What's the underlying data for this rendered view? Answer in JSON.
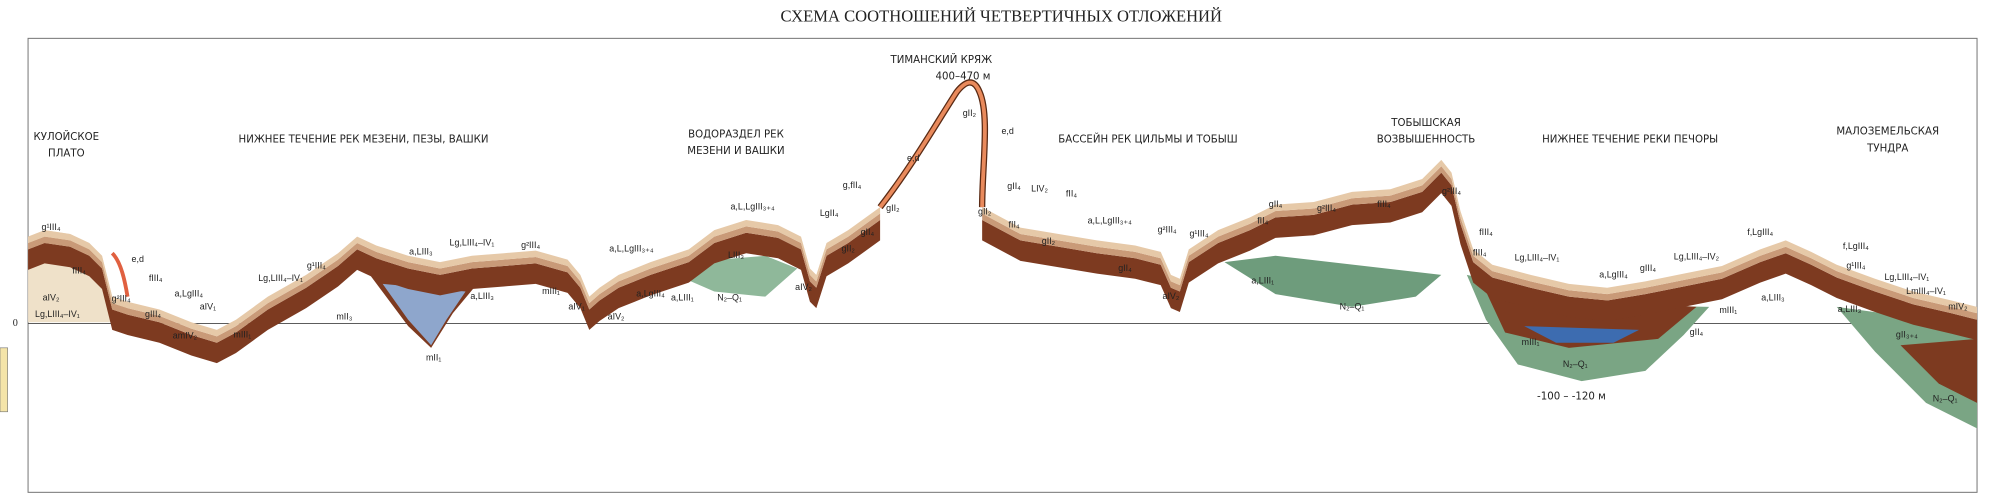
{
  "title": "СХЕМА СООТНОШЕНИЙ ЧЕТВЕРТИЧНЫХ ОТЛОЖЕНИЙ",
  "regions": [
    {
      "lines": [
        "КУЛОЙСКОЕ",
        "ПЛАТО"
      ]
    },
    {
      "lines": [
        "НИЖНЕЕ ТЕЧЕНИЕ РЕК  МЕЗЕНИ, ПЕЗЫ, ВАШКИ"
      ]
    },
    {
      "lines": [
        "ВОДОРАЗДЕЛ РЕК",
        "МЕЗЕНИ И ВАШКИ"
      ]
    },
    {
      "lines": [
        "ТИМАНСКИЙ КРЯЖ",
        "400–470 м"
      ]
    },
    {
      "lines": [
        "БАССЕЙН РЕК ЦИЛЬМЫ И ТОБЫШ"
      ]
    },
    {
      "lines": [
        "ТОБЫШСКАЯ",
        "ВОЗВЫШЕННОСТЬ"
      ]
    },
    {
      "lines": [
        "НИЖНЕЕ ТЕЧЕНИЕ РЕКИ ПЕЧОРЫ"
      ]
    },
    {
      "lines": [
        "МАЛОЗЕМЕЛЬСКАЯ",
        "ТУНДРА"
      ]
    }
  ],
  "zero_label": "0",
  "depth_label": "-100 – -120 м",
  "formation_labels": [
    "g¹III₄",
    "e,d",
    "fIII₄",
    "aIV₂",
    "Lg,LIII₄–IV₁",
    "g²III₄",
    "fIII₄",
    "a,LgIII₄",
    "aIV₁",
    "gIII₄",
    "amIV₂",
    "mIII₁",
    "Lg,LIII₄–IV₁",
    "g¹III₄",
    "mII₃",
    "mII₁",
    "a,LIII₃",
    "Lg,LIII₄–IV₁",
    "a,LIII₃",
    "g²III₄",
    "mIII₁",
    "aIV₁",
    "aIV₂",
    "a,L,LgIII₃₊₄",
    "a,LgIII₄",
    "a,LIII₁",
    "N₂–Q₁",
    "LIII₃",
    "a,L,LgIII₃₊₄",
    "aIV₂",
    "LgII₄",
    "g,fII₄",
    "gII₂",
    "gII₄",
    "gII₂",
    "e,d",
    "gII₂",
    "e,d",
    "gII₄",
    "LIV₂",
    "fII₄",
    "gII₂",
    "fII₄",
    "gII₂",
    "a,L,LgIII₃₊₄",
    "g²III₄",
    "g¹III₄",
    "gII₄",
    "aIV₂",
    "fII₄",
    "gII₄",
    "a,LIII₁",
    "N₂–Q₁",
    "g²III₄",
    "fIII₄",
    "g²III₄",
    "fIII₄",
    "fIII₄",
    "Lg,LIII₄–IV₁",
    "a,LgIII₄",
    "gIII₄",
    "Lg,LIII₄–IV₂",
    "mIII₁",
    "N₂–Q₁",
    "mIII₁",
    "gII₄",
    "a,LIII₃",
    "f,LgIII₄",
    "f,LgIII₄",
    "g¹III₄",
    "Lg,LIII₄–IV₁",
    "LmIII₄–IV₁",
    "mIV₂",
    "gII₃₊₄",
    "a,LIII₃",
    "N₂–Q₁"
  ]
}
